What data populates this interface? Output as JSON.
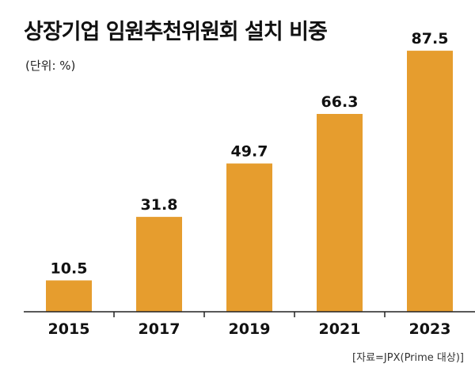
{
  "title": "상장기업 임원추천위원회 설치 비중",
  "unit": "(단위: %)",
  "source": "[자료=JPX(Prime 대상)]",
  "bar_color": "#E69D2E",
  "chart_data": {
    "type": "bar",
    "categories": [
      "2015",
      "2017",
      "2019",
      "2021",
      "2023"
    ],
    "values": [
      10.5,
      31.8,
      49.7,
      66.3,
      87.5
    ],
    "value_labels": [
      "10.5",
      "31.8",
      "49.7",
      "66.3",
      "87.5"
    ],
    "ylim": [
      0,
      100
    ],
    "grid": false
  }
}
